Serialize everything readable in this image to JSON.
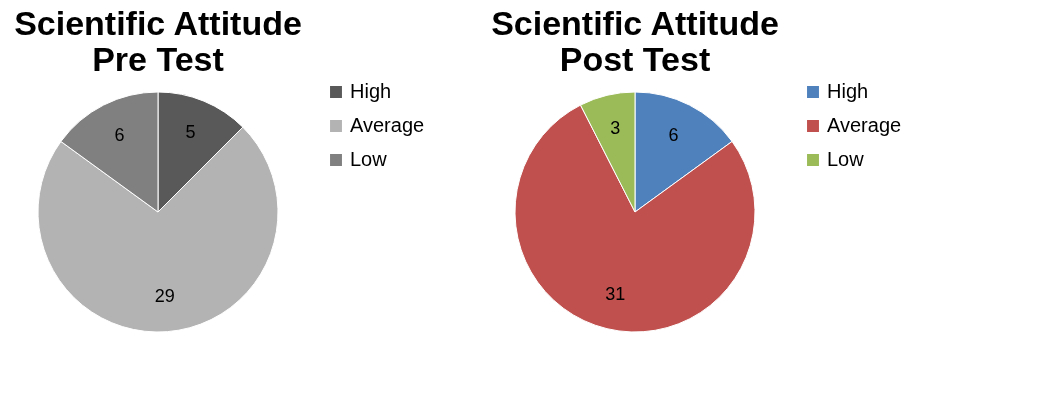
{
  "chart_data": [
    {
      "type": "pie",
      "title": "Scientific Attitude\nPre Test",
      "categories": [
        "High",
        "Average",
        "Low"
      ],
      "values": [
        5,
        29,
        6
      ],
      "colors": [
        "#595959",
        "#b3b3b3",
        "#808080"
      ],
      "data_labels": true,
      "legend": "right"
    },
    {
      "type": "pie",
      "title": "Scientific Attitude\nPost Test",
      "categories": [
        "High",
        "Average",
        "Low"
      ],
      "values": [
        6,
        31,
        3
      ],
      "colors": [
        "#4f81bd",
        "#c0504d",
        "#9bbb59"
      ],
      "data_labels": true,
      "legend": "right"
    }
  ]
}
